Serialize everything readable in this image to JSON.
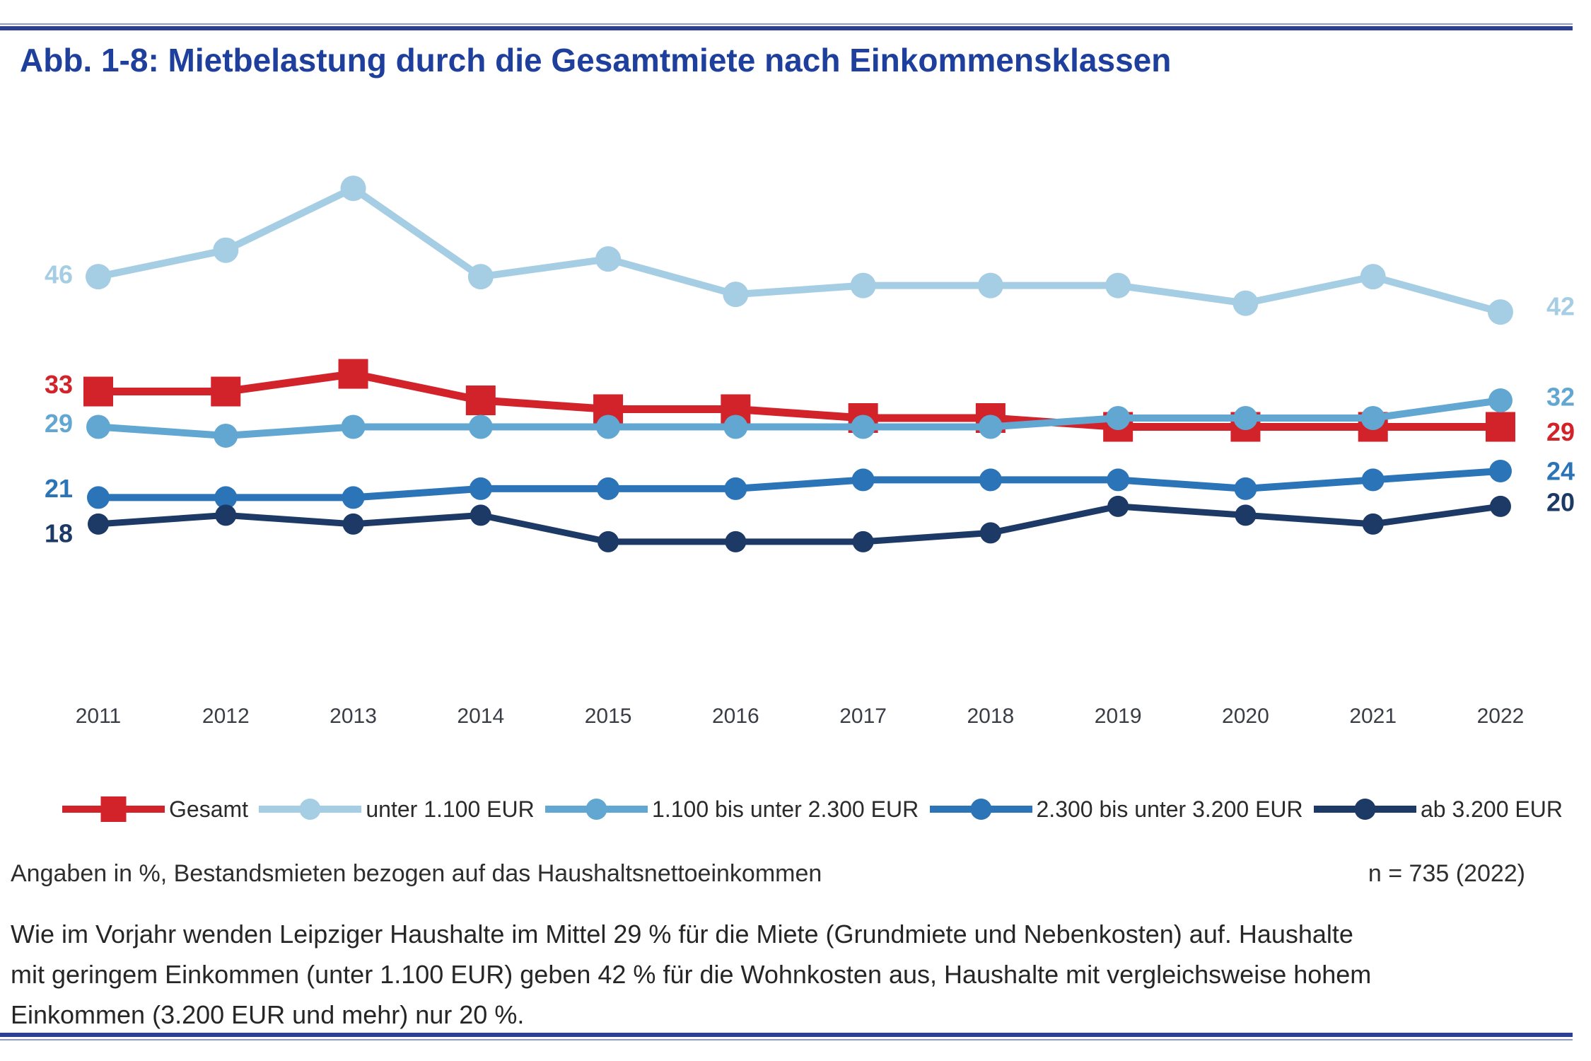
{
  "title": "Abb. 1-8: Mietbelastung durch die Gesamtmiete nach Einkommensklassen",
  "chart_data": {
    "type": "line",
    "title": "Abb. 1-8: Mietbelastung durch die Gesamtmiete nach Einkommensklassen",
    "xlabel": "",
    "ylabel": "",
    "x": [
      2011,
      2012,
      2013,
      2014,
      2015,
      2016,
      2017,
      2018,
      2019,
      2020,
      2021,
      2022
    ],
    "ylim": [
      14,
      58
    ],
    "grid": false,
    "legend_position": "bottom",
    "value_labels": "first and last point of each series, colored like the series",
    "series": [
      {
        "name": "Gesamt",
        "color": "#d2232a",
        "marker": "square",
        "marker_size": 42,
        "line_width": 11,
        "values": [
          33,
          33,
          35,
          32,
          31,
          31,
          30,
          30,
          29,
          29,
          29,
          29
        ],
        "left_label": "33",
        "right_label": "29",
        "left_dy": -10,
        "right_dy": 7
      },
      {
        "name": "unter 1.100 EUR",
        "color": "#a5cde3",
        "marker": "circle",
        "marker_size": 36,
        "line_width": 10,
        "values": [
          46,
          49,
          56,
          46,
          48,
          44,
          45,
          45,
          45,
          43,
          46,
          42
        ],
        "left_label": "46",
        "right_label": "42",
        "left_dy": -3,
        "right_dy": -8
      },
      {
        "name": "1.100 bis unter 2.300 EUR",
        "color": "#61a7d2",
        "marker": "circle",
        "marker_size": 34,
        "line_width": 10,
        "values": [
          29,
          28,
          29,
          29,
          29,
          29,
          29,
          29,
          30,
          30,
          30,
          32
        ],
        "left_label": "29",
        "right_label": "32",
        "left_dy": -5,
        "right_dy": -5
      },
      {
        "name": "2.300 bis unter 3.200 EUR",
        "color": "#2b74b8",
        "marker": "circle",
        "marker_size": 32,
        "line_width": 10,
        "values": [
          21,
          21,
          21,
          22,
          22,
          22,
          23,
          23,
          23,
          22,
          23,
          24
        ],
        "left_label": "21",
        "right_label": "24",
        "left_dy": -13,
        "right_dy": 0
      },
      {
        "name": "ab 3.200 EUR",
        "color": "#1d3a67",
        "marker": "circle",
        "marker_size": 30,
        "line_width": 9,
        "values": [
          18,
          19,
          18,
          19,
          16,
          16,
          16,
          17,
          20,
          19,
          18,
          20
        ],
        "left_label": "18",
        "right_label": "20",
        "left_dy": 13,
        "right_dy": -6
      }
    ],
    "x_tick_labels": [
      "2011",
      "2012",
      "2013",
      "2014",
      "2015",
      "2016",
      "2017",
      "2018",
      "2019",
      "2020",
      "2021",
      "2022"
    ]
  },
  "footnote": {
    "left": "Angaben in %, Bestandsmieten bezogen auf das Haushaltsnettoeinkommen",
    "right": "n = 735 (2022)"
  },
  "paragraph": {
    "text": "Wie im Vorjahr wenden Leipziger Haushalte im Mittel 29 % für die Miete (Grundmiete und Nebenkosten) auf. Haushalte\nmit geringem Einkommen (unter 1.100 EUR) geben 42 % für die Wohnkosten aus, Haushalte mit vergleichsweise hohem\nEinkommen (3.200 EUR und mehr) nur 20 %."
  },
  "colors": {
    "title": "#1e3f9c",
    "rule": "#2c3f94",
    "year_label": "#3a3d45",
    "text": "#262626"
  }
}
